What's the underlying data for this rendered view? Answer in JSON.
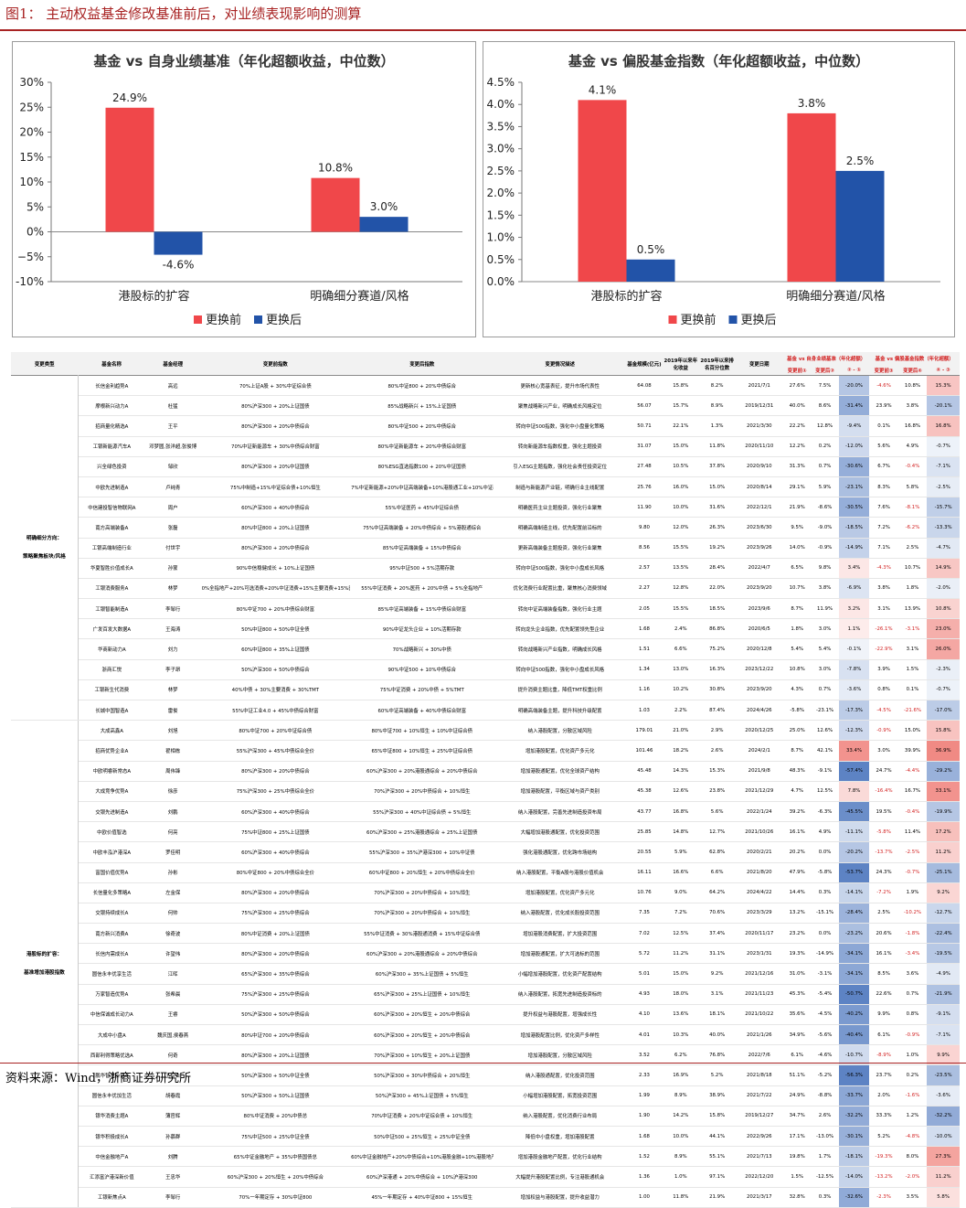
{
  "figure_title": "图1： 主动权益基金修改基准前后，对业绩表现影响的测算",
  "source": "资料来源：Wind，浙商证券研究所",
  "colors": {
    "before": "#f0474a",
    "after": "#2253a8",
    "cell_red": "#e8453c",
    "cell_blue": "#3c6ab8"
  },
  "chart_data": [
    {
      "type": "bar",
      "title": "基金 vs 自身业绩基准（年化超额收益，中位数）",
      "categories": [
        "港股标的扩容",
        "明确细分赛道/风格"
      ],
      "series": [
        {
          "name": "更换前",
          "values": [
            24.9,
            10.8
          ],
          "labels": [
            "24.9%",
            "10.8%"
          ]
        },
        {
          "name": "更换后",
          "values": [
            -4.6,
            3.0
          ],
          "labels": [
            "-4.6%",
            "3.0%"
          ]
        }
      ],
      "ylim": [
        -10,
        30
      ],
      "yticks": [
        -10,
        -5,
        0,
        5,
        10,
        15,
        20,
        25,
        30
      ],
      "ytick_labels": [
        "-10%",
        "−5%",
        "0%",
        "5%",
        "10%",
        "15%",
        "20%",
        "25%",
        "30%"
      ],
      "legend": "bottom"
    },
    {
      "type": "bar",
      "title": "基金 vs 偏股基金指数（年化超额收益，中位数）",
      "categories": [
        "港股标的扩容",
        "明确细分赛道/风格"
      ],
      "series": [
        {
          "name": "更换前",
          "values": [
            4.1,
            3.8
          ],
          "labels": [
            "4.1%",
            "3.8%"
          ]
        },
        {
          "name": "更换后",
          "values": [
            0.5,
            2.5
          ],
          "labels": [
            "0.5%",
            "2.5%"
          ]
        }
      ],
      "ylim": [
        0,
        4.5
      ],
      "yticks": [
        0,
        0.5,
        1,
        1.5,
        2,
        2.5,
        3,
        3.5,
        4,
        4.5
      ],
      "ytick_labels": [
        "0.0%",
        "0.5%",
        "1.0%",
        "1.5%",
        "2.0%",
        "2.5%",
        "3.0%",
        "3.5%",
        "4.0%",
        "4.5%"
      ],
      "legend": "bottom"
    }
  ],
  "table": {
    "head1": [
      "变更类型",
      "基金名称",
      "基金经理",
      "变更前指数",
      "变更后指数",
      "变更情况描述",
      "基金规模(亿元)",
      "2019年以来年化收益",
      "2019年以来排名百分位数",
      "变更日期",
      "基金 vs 自身业绩基准（年化超额）",
      "基金 vs 偏股基金指数（年化超额）"
    ],
    "head2": [
      "变更前①",
      "变更后②",
      "② - ①",
      "变更前③",
      "变更后④",
      "④ - ③"
    ],
    "groups": [
      {
        "label": "明确细分方向：\n\n策略聚焦板块/风格",
        "rows": [
          [
            "长信金利趋势A",
            "高远",
            "70%上证A股 + 30%中证综合债",
            "80%中证800 + 20%中债综合",
            "更新核心宽基表征，提升市场代表性",
            "64.08",
            "15.8%",
            "8.2%",
            "2021/7/1",
            "27.6%",
            "7.5%",
            "-20.0%",
            "-4.6%",
            "10.8%",
            "15.3%"
          ],
          [
            "摩根新兴动力A",
            "杜猛",
            "80%沪深300 + 20%上证国债",
            "85%战略新兴 + 15%上证国债",
            "聚焦战略新兴产业，明确成长风格定位",
            "56.07",
            "15.7%",
            "8.9%",
            "2019/12/31",
            "40.0%",
            "8.6%",
            "-31.4%",
            "23.9%",
            "3.8%",
            "-20.1%"
          ],
          [
            "招商量化精选A",
            "王平",
            "80%沪深300 + 20%中债综合",
            "80%中证500 + 20%中债综合",
            "转向中证500指数，强化中小盘量化策略",
            "50.71",
            "22.1%",
            "1.3%",
            "2021/3/30",
            "22.2%",
            "12.8%",
            "-9.4%",
            "0.1%",
            "16.8%",
            "16.8%"
          ],
          [
            "工银新能源汽车A",
            "邓梦圆,张洋超,张俊博",
            "70%中证新能源车 + 30%中债综合财富",
            "80%中证新能源车 + 20%中债综合财富",
            "转向新能源车指数权重，强化主题投资",
            "31.07",
            "15.0%",
            "11.8%",
            "2020/11/10",
            "12.2%",
            "0.2%",
            "-12.0%",
            "5.6%",
            "4.9%",
            "-0.7%"
          ],
          [
            "兴全绿色投资",
            "邹欣",
            "80%沪深300 + 20%中证国债",
            "80%ESG直选指数100 + 20%中证国债",
            "引入ESG主题指数，强化社会责任投资定位",
            "27.48",
            "10.5%",
            "37.8%",
            "2020/9/10",
            "31.3%",
            "0.7%",
            "-30.6%",
            "6.7%",
            "-0.4%",
            "-7.1%"
          ],
          [
            "中欧先进制造A",
            "卢纯青",
            "75%中制造+15%中证综合债+10%恒生",
            "7%中证新能源+20%中证高端装备+10%港股通工业+10%中证新能源车+中证国证新能源汽车",
            "制造与新能源产业链，明确行业主线配置",
            "25.76",
            "16.0%",
            "15.0%",
            "2020/8/14",
            "29.1%",
            "5.9%",
            "-23.1%",
            "8.3%",
            "5.8%",
            "-2.5%"
          ],
          [
            "中信建投智信物联网A",
            "周户",
            "60%沪深300 + 40%中债综合",
            "55%中证医药 + 45%中证综合债",
            "明确医药主业主题投资，强化行业聚焦",
            "11.90",
            "10.0%",
            "31.6%",
            "2022/12/1",
            "21.9%",
            "-8.6%",
            "-30.5%",
            "7.6%",
            "-8.1%",
            "-15.7%"
          ],
          [
            "南方高端装备A",
            "张磊",
            "80%中证800 + 20%上证国债",
            "75%中证高端装备 + 20%中债综合 + 5%港股通综合",
            "明确高端制造主线，优先配置前沿标的",
            "9.80",
            "12.0%",
            "26.3%",
            "2023/6/30",
            "9.5%",
            "-9.0%",
            "-18.5%",
            "7.2%",
            "-6.2%",
            "-13.3%"
          ],
          [
            "工银高端制造行业",
            "付世宇",
            "80%沪深300 + 20%中债综合",
            "85%中证高端装备 + 15%中债综合",
            "更新高端装备主题投资，强化行业聚焦",
            "8.56",
            "15.5%",
            "19.2%",
            "2023/9/26",
            "14.0%",
            "-0.9%",
            "-14.9%",
            "7.1%",
            "2.5%",
            "-4.7%"
          ],
          [
            "华夏智胜价值成长A",
            "孙蒙",
            "90%中信稳健成长 + 10%上证国债",
            "95%中证500 + 5%活期存款",
            "转向中证500指数，强化中小盘成长风格",
            "2.57",
            "13.5%",
            "28.4%",
            "2022/4/7",
            "6.5%",
            "9.8%",
            "3.4%",
            "-4.3%",
            "10.7%",
            "14.9%"
          ],
          [
            "工银消费服务A",
            "林梦",
            "0%全指地产+20%可选消费+20%中证消费+15%主要消费+15%医药卫生+30%中证全债",
            "55%中证消费 + 20%医药 + 20%中债 + 5%全指地产",
            "优化消费行业配置比重，聚焦核心消费领域",
            "2.27",
            "12.8%",
            "22.0%",
            "2023/9/20",
            "10.7%",
            "3.8%",
            "-6.9%",
            "3.8%",
            "1.8%",
            "-2.0%"
          ],
          [
            "工银智能制造A",
            "李邹行",
            "80%中证700 + 20%中债综合财富",
            "85%中证高端装备 + 15%中债综合财富",
            "转向中证高端装备指数，强化行业主题",
            "2.05",
            "15.5%",
            "18.5%",
            "2023/9/6",
            "8.7%",
            "11.9%",
            "3.2%",
            "3.1%",
            "13.9%",
            "10.8%"
          ],
          [
            "广发百发大数据A",
            "王海涛",
            "50%中证800 + 50%中证全债",
            "90%中证龙头企业 + 10%活期存款",
            "转向龙头企业指数，优先配置领先型企业",
            "1.68",
            "2.4%",
            "86.8%",
            "2020/6/5",
            "1.8%",
            "3.0%",
            "1.1%",
            "-26.1%",
            "-3.1%",
            "23.0%"
          ],
          [
            "华商新动力A",
            "刘力",
            "60%中证800 + 35%上证国债",
            "70%战略新兴 + 30%中债",
            "转向战略新兴产业指数，明确成长风格",
            "1.51",
            "6.6%",
            "75.2%",
            "2020/12/8",
            "5.4%",
            "5.4%",
            "-0.1%",
            "-22.9%",
            "3.1%",
            "26.0%"
          ],
          [
            "浙商汇悦",
            "李子昂",
            "50%沪深300 + 50%中债综合",
            "90%中证500 + 10%中债综合",
            "转向中证500指数，强化中小盘成长风格",
            "1.34",
            "13.0%",
            "16.3%",
            "2023/12/22",
            "10.8%",
            "3.0%",
            "-7.8%",
            "3.9%",
            "1.5%",
            "-2.3%"
          ],
          [
            "工银新生代消费",
            "林梦",
            "40%中债 + 30%主要消费 + 30%TMT",
            "75%中证消费 + 20%中债 + 5%TMT",
            "提升消费主题比重，降低TMT权重比例",
            "1.16",
            "10.2%",
            "30.8%",
            "2023/9/20",
            "4.3%",
            "0.7%",
            "-3.6%",
            "0.8%",
            "0.1%",
            "-0.7%"
          ],
          [
            "长城中国智造A",
            "雷俊",
            "55%中证工业4.0 + 45%中债综合财富",
            "60%中证高端装备 + 40%中债综合财富",
            "明确高端装备主题，提升科技升级配置",
            "1.03",
            "2.2%",
            "87.4%",
            "2024/4/26",
            "-5.8%",
            "-23.1%",
            "-17.3%",
            "-4.5%",
            "-21.6%",
            "-17.0%"
          ]
        ]
      },
      {
        "label": "港股标的扩容：\n\n基准增加港股指数",
        "rows": [
          [
            "大成高鑫A",
            "刘旭",
            "80%中证700 + 20%中证综合债",
            "80%中证700 + 10%恒生 + 10%中证综合债",
            "纳入港股配置，分散区域风险",
            "179.01",
            "21.0%",
            "2.9%",
            "2020/12/25",
            "25.0%",
            "12.6%",
            "-12.3%",
            "-0.9%",
            "15.0%",
            "15.8%"
          ],
          [
            "招商优势企业A",
            "翟相栋",
            "55%沪深300 + 45%中债综合全价",
            "65%中证800 + 10%恒生 + 25%中证综合债",
            "增加港股配置，优化资产多元化",
            "101.46",
            "18.2%",
            "2.6%",
            "2024/2/1",
            "8.7%",
            "42.1%",
            "33.4%",
            "3.0%",
            "39.9%",
            "36.9%"
          ],
          [
            "中欧明睿新常态A",
            "周伟锋",
            "80%沪深300 + 20%中债综合",
            "60%沪深300 + 20%港股通综合 + 20%中债综合",
            "增加港股通配置，优化全球资产结构",
            "45.48",
            "14.3%",
            "15.3%",
            "2021/9/8",
            "48.3%",
            "-9.1%",
            "-57.4%",
            "24.7%",
            "-4.4%",
            "-29.2%"
          ],
          [
            "大成竞争优势A",
            "徐彦",
            "75%沪深300 + 25%中债综合全价",
            "70%沪深300 + 20%中债综合 + 10%恒生",
            "增加港股配置，平衡区域与资产类别",
            "45.38",
            "12.6%",
            "23.8%",
            "2021/12/29",
            "4.7%",
            "12.5%",
            "7.8%",
            "-16.4%",
            "16.7%",
            "33.1%"
          ],
          [
            "交银先进制造A",
            "刘鹏",
            "60%沪深300 + 40%中债综合",
            "55%沪深300 + 40%中证综合债 + 5%恒生",
            "纳入港股配置，完善先进制造投资布局",
            "43.77",
            "16.8%",
            "5.6%",
            "2022/1/24",
            "39.2%",
            "-6.3%",
            "-45.5%",
            "19.5%",
            "-0.4%",
            "-19.9%"
          ],
          [
            "中欧价值智选",
            "何亮",
            "75%中证800 + 25%上证国债",
            "60%沪深300 + 25%港股通综合 + 25%上证国债",
            "大幅增加港股通配置，优化投资范围",
            "25.85",
            "14.8%",
            "12.7%",
            "2021/10/26",
            "16.1%",
            "4.9%",
            "-11.1%",
            "-5.8%",
            "11.4%",
            "17.2%"
          ],
          [
            "中欧丰泓沪港深A",
            "罗佳明",
            "60%沪深300 + 40%中债综合",
            "55%沪深300 + 35%沪港深300 + 10%中证债",
            "强化港股通配置，优化跨市场结构",
            "20.55",
            "5.9%",
            "62.8%",
            "2020/2/21",
            "20.2%",
            "0.0%",
            "-20.2%",
            "-13.7%",
            "-2.5%",
            "11.2%"
          ],
          [
            "富国价值优势A",
            "孙彬",
            "80%中证800 + 20%中债综合全价",
            "60%中证800 + 20%恒生 + 20%中债综合全价",
            "纳入港股配置，平衡A股与港股价值机会",
            "16.11",
            "16.6%",
            "6.6%",
            "2021/8/20",
            "47.9%",
            "-5.8%",
            "-53.7%",
            "24.3%",
            "-0.7%",
            "-25.1%"
          ],
          [
            "长信量化多策略A",
            "左金保",
            "80%沪深300 + 20%中债综合",
            "70%沪深300 + 20%中债综合 + 10%恒生",
            "增加港股配置，优化资产多元化",
            "10.76",
            "9.0%",
            "64.2%",
            "2024/4/22",
            "14.4%",
            "0.3%",
            "-14.1%",
            "-7.2%",
            "1.9%",
            "9.2%"
          ],
          [
            "交银持续成长A",
            "何帅",
            "75%沪深300 + 25%中债综合",
            "70%沪深300 + 20%中债综合 + 10%恒生",
            "纳入港股配置，优化成长股投资范围",
            "7.35",
            "7.2%",
            "70.6%",
            "2023/3/29",
            "13.2%",
            "-15.1%",
            "-28.4%",
            "2.5%",
            "-10.2%",
            "-12.7%"
          ],
          [
            "南方新兴消费A",
            "徐奇波",
            "80%中证消费 + 20%上证国债",
            "55%中证消费 + 30%港股通消费 + 15%中证综合债",
            "增加港股消费配置，扩大投资范围",
            "7.02",
            "12.5%",
            "37.4%",
            "2020/11/17",
            "23.2%",
            "0.0%",
            "-23.2%",
            "20.6%",
            "-1.8%",
            "-22.4%"
          ],
          [
            "长信内需成长A",
            "许望伟",
            "80%沪深300 + 20%中债综合",
            "60%沪深300 + 20%港股通综合 + 20%中债综合",
            "增加港股通配置，扩大可选标的范围",
            "5.72",
            "11.2%",
            "31.1%",
            "2023/1/31",
            "19.3%",
            "-14.9%",
            "-34.1%",
            "16.1%",
            "-3.4%",
            "-19.5%"
          ],
          [
            "圆信永丰优享生活",
            "江晖",
            "65%沪深300 + 35%中债综合",
            "60%沪深300 + 35%上证国债 + 5%恒生",
            "小幅增加港股配置，优化资产配置结构",
            "5.01",
            "15.0%",
            "9.2%",
            "2021/12/16",
            "31.0%",
            "-3.1%",
            "-34.1%",
            "8.5%",
            "3.6%",
            "-4.9%"
          ],
          [
            "万家智造优势A",
            "张希晨",
            "75%沪深300 + 25%中债综合",
            "65%沪深300 + 25%上证国债 + 10%恒生",
            "纳入港股配置，拓宽先进制造投资标的",
            "4.93",
            "18.0%",
            "3.1%",
            "2021/11/23",
            "45.3%",
            "-5.4%",
            "-50.7%",
            "22.6%",
            "0.7%",
            "-21.9%"
          ],
          [
            "中信保诚成长动力A",
            "王睿",
            "50%沪深300 + 50%中债综合",
            "60%沪深300 + 20%恒生 + 20%中债综合",
            "提升权益与港股配置，增强成长性",
            "4.10",
            "13.6%",
            "18.1%",
            "2021/10/22",
            "35.6%",
            "-4.5%",
            "-40.2%",
            "9.9%",
            "0.8%",
            "-9.1%"
          ],
          [
            "大成中小盘A",
            "魏庆国,侯春燕",
            "80%中证700 + 20%中债综合",
            "60%沪深300 + 20%恒生 + 20%中债综合",
            "增加港股配置比例，优化资产多样性",
            "4.01",
            "10.3%",
            "40.0%",
            "2021/1/26",
            "34.9%",
            "-5.6%",
            "-40.4%",
            "6.1%",
            "-0.9%",
            "-7.1%"
          ],
          [
            "西部利得策略优选A",
            "何奇",
            "80%沪深300 + 20%上证国债",
            "70%沪深300 + 10%恒生 + 20%上证国债",
            "增加港股配置，分散区域风险",
            "3.52",
            "6.2%",
            "76.8%",
            "2022/7/6",
            "6.1%",
            "-4.6%",
            "-10.7%",
            "-8.9%",
            "1.0%",
            "9.9%"
          ],
          [
            "鹏华智慧价值A",
            "王宗合",
            "50%沪深300 + 50%中证全债",
            "50%沪深300 + 30%中债综合 + 20%恒生",
            "纳入港股通配置，优化投资范围",
            "2.33",
            "16.9%",
            "5.2%",
            "2021/8/18",
            "51.1%",
            "-5.2%",
            "-56.3%",
            "23.7%",
            "0.2%",
            "-23.5%"
          ],
          [
            "圆信永丰优加生活",
            "胡春霞",
            "50%沪深300 + 50%上证国债",
            "50%沪深300 + 45%上证国债 + 5%恒生",
            "小幅增加港股配置，拓宽投资范围",
            "1.99",
            "8.9%",
            "38.9%",
            "2021/7/22",
            "24.9%",
            "-8.8%",
            "-33.7%",
            "2.0%",
            "-1.6%",
            "-3.6%"
          ],
          [
            "银华消费主题A",
            "薄官辉",
            "80%中证消费 + 20%中债总",
            "70%中证消费 + 20%中证综合债 + 10%恒生",
            "纳入港股配置，优化消费行业布局",
            "1.90",
            "14.2%",
            "15.8%",
            "2019/12/27",
            "34.7%",
            "2.6%",
            "-32.2%",
            "33.3%",
            "1.2%",
            "-32.2%"
          ],
          [
            "银华积极成长A",
            "孙慕群",
            "75%中证500 + 25%中证全债",
            "50%中证500 + 25%恒生 + 25%中证全债",
            "降低中小盘权重，增加港股配置",
            "1.68",
            "10.0%",
            "44.1%",
            "2022/9/26",
            "17.1%",
            "-13.0%",
            "-30.1%",
            "5.2%",
            "-4.8%",
            "-10.0%"
          ],
          [
            "中信金融地产A",
            "刘腾",
            "65%中证金融地产 + 35%中债国债总",
            "60%中证金融地产+20%中债综合+10%港股金融+10%港股地产",
            "增加港股金融地产配置，优化行业结构",
            "1.52",
            "8.9%",
            "55.1%",
            "2021/7/13",
            "19.8%",
            "1.7%",
            "-18.1%",
            "-19.3%",
            "8.0%",
            "27.3%"
          ],
          [
            "汇添富沪港深新价值",
            "王忠华",
            "60%沪深300 + 20%恒生 + 20%中债综合",
            "60%沪深港通 + 20%中债综合 + 10%沪港深300",
            "大幅提升港股配置比例，专注港股通机会",
            "1.36",
            "1.0%",
            "97.1%",
            "2022/12/20",
            "1.5%",
            "-12.5%",
            "-14.0%",
            "-13.2%",
            "-2.0%",
            "11.2%"
          ],
          [
            "工银新焦点A",
            "李邹行",
            "70%一年期定存 + 30%中证800",
            "45%一年期定存 + 40%中证800 + 15%恒生",
            "增加权益与港股配置，提升收益潜力",
            "1.00",
            "11.8%",
            "21.9%",
            "2021/3/17",
            "32.8%",
            "0.3%",
            "-32.6%",
            "-2.3%",
            "3.5%",
            "5.8%"
          ]
        ]
      }
    ]
  }
}
